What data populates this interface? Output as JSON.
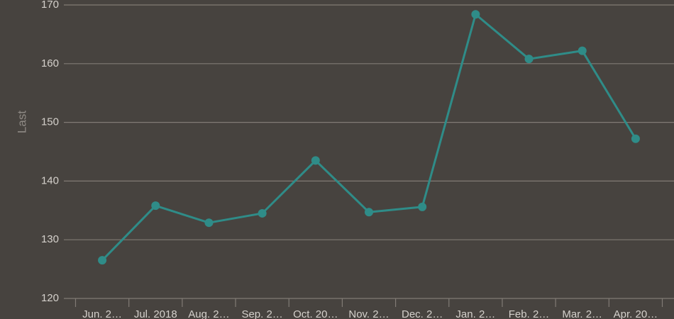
{
  "chart_data": {
    "type": "line",
    "y_label": "Last",
    "categories": [
      "Jun. 2…",
      "Jul. 2018",
      "Aug. 2…",
      "Sep. 2…",
      "Oct. 20…",
      "Nov. 2…",
      "Dec. 2…",
      "Jan. 2…",
      "Feb. 2…",
      "Mar. 2…",
      "Apr. 20…"
    ],
    "series": [
      {
        "name": "Last",
        "color": "#2f8c88",
        "values": [
          126.5,
          135.8,
          132.9,
          134.5,
          143.5,
          134.7,
          135.6,
          168.4,
          160.8,
          162.2,
          147.2
        ]
      }
    ],
    "ylim": [
      120,
      170
    ],
    "yticks": [
      120,
      130,
      140,
      150,
      160,
      170
    ],
    "grid": true
  }
}
